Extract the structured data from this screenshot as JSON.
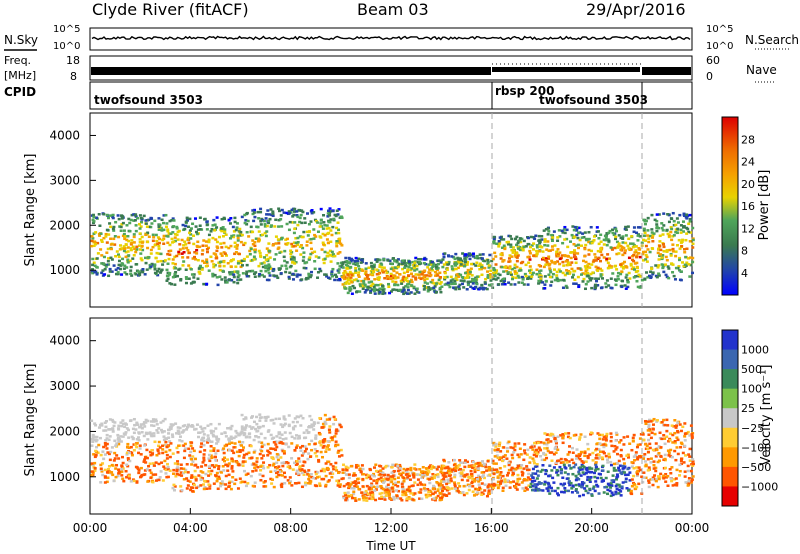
{
  "header": {
    "station": "Clyde River (fitACF)",
    "beam": "Beam 03",
    "date": "29/Apr/2016"
  },
  "chart_data": [
    {
      "type": "line",
      "name": "noise-panel",
      "left_label": "N.Sky",
      "right_label": "N.Search",
      "left_ticks": [
        "10^5",
        "10^0"
      ],
      "right_ticks": [
        "10^5",
        "10^0"
      ]
    },
    {
      "type": "line",
      "name": "frequency-panel",
      "left_label": "Freq.",
      "left_unit": "[MHz]",
      "right_label": "Nave",
      "left_ticks": [
        "18",
        "8"
      ],
      "right_ticks": [
        "60",
        "0"
      ]
    },
    {
      "type": "table",
      "name": "cpid-panel",
      "label": "CPID",
      "segments": [
        {
          "start": 0,
          "end": 16,
          "text": "twofsound 3503"
        },
        {
          "start": 16,
          "end": 22,
          "text": "rbsp 200"
        },
        {
          "start": 22,
          "end": 24,
          "text": "twofsound 3503"
        }
      ]
    },
    {
      "type": "heatmap",
      "name": "power-panel",
      "ylabel": "Slant Range [km]",
      "ylim": [
        180,
        4500
      ],
      "yticks": [
        "1000",
        "2000",
        "3000",
        "4000"
      ],
      "colorbar_label": "Power [dB]",
      "colorbar_ticks": [
        "4",
        "8",
        "12",
        "16",
        "20",
        "24",
        "28"
      ],
      "colorbar_colors": [
        "#0000ff",
        "#2244aa",
        "#3a7a50",
        "#4fa55a",
        "#e8d200",
        "#f5a000",
        "#ee6a00",
        "#dd0000"
      ],
      "bands": [
        {
          "t0": 0,
          "t1": 3,
          "r0": 900,
          "r1": 2300,
          "intensity": 0.55
        },
        {
          "t0": 3,
          "t1": 6,
          "r0": 700,
          "r1": 2200,
          "intensity": 0.65
        },
        {
          "t0": 6,
          "t1": 10,
          "r0": 800,
          "r1": 2400,
          "intensity": 0.5
        },
        {
          "t0": 10,
          "t1": 14,
          "r0": 500,
          "r1": 1300,
          "intensity": 0.6
        },
        {
          "t0": 14,
          "t1": 16,
          "r0": 600,
          "r1": 1400,
          "intensity": 0.5
        },
        {
          "t0": 16,
          "t1": 18,
          "r0": 700,
          "r1": 1800,
          "intensity": 0.65
        },
        {
          "t0": 18,
          "t1": 22,
          "r0": 600,
          "r1": 2000,
          "intensity": 0.7
        },
        {
          "t0": 22,
          "t1": 24,
          "r0": 800,
          "r1": 2300,
          "intensity": 0.55
        }
      ]
    },
    {
      "type": "heatmap",
      "name": "velocity-panel",
      "ylabel": "Slant Range [km]",
      "xlabel": "Time UT",
      "ylim": [
        180,
        4500
      ],
      "yticks": [
        "1000",
        "2000",
        "3000",
        "4000"
      ],
      "xticks": [
        "00:00",
        "04:00",
        "08:00",
        "12:00",
        "16:00",
        "20:00",
        "00:00"
      ],
      "xlim": [
        0,
        24
      ],
      "colorbar_label": "Velocity [m s⁻¹]",
      "colorbar_ticks": [
        "1000",
        "500",
        "100",
        "25",
        "−25",
        "−100",
        "−500",
        "−1000"
      ],
      "colorbar_colors": [
        "#2233cc",
        "#3a66b0",
        "#3a8a5a",
        "#7cc24a",
        "#c8c8c8",
        "#ffcc33",
        "#ff9900",
        "#ff5500",
        "#e60000"
      ]
    }
  ]
}
